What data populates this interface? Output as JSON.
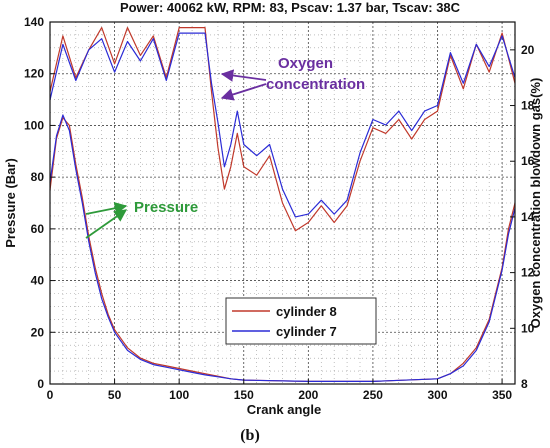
{
  "chart_data": {
    "type": "line",
    "title": "Power: 40062 kW, RPM: 83, Pscav: 1.37 bar, Tscav: 38C",
    "xlabel": "Crank angle",
    "ylabel_left": "Pressure (Bar)",
    "ylabel_right": "Oxygen concentration blowdown gas(%)",
    "xlim": [
      0,
      360
    ],
    "ylim_left": [
      0,
      140
    ],
    "ylim_right": [
      8,
      21
    ],
    "xticks": [
      "0",
      "50",
      "100",
      "150",
      "200",
      "250",
      "300",
      "350"
    ],
    "yticks_left": [
      "0",
      "20",
      "40",
      "60",
      "80",
      "100",
      "120",
      "140"
    ],
    "yticks_right": [
      "8",
      "10",
      "12",
      "14",
      "16",
      "18",
      "20"
    ],
    "grid": true,
    "legend_position": "bottom-center",
    "caption": "(b)",
    "annotations": {
      "oxygen_line1": "Oxygen",
      "oxygen_line2": "concentration",
      "pressure": "Pressure"
    },
    "colors": {
      "cylinder_8": "#c0392b",
      "cylinder_7": "#2b2bd6",
      "oxygen_arrow": "#6a2fa0",
      "pressure_arrow": "#2e9a3a"
    },
    "series": [
      {
        "name": "cylinder 8",
        "axis": "left",
        "quantity": "Pressure",
        "x": [
          0,
          5,
          10,
          15,
          20,
          25,
          30,
          35,
          40,
          45,
          50,
          60,
          70,
          80,
          90,
          100,
          110,
          120,
          130,
          140,
          150,
          200,
          250,
          300,
          310,
          320,
          330,
          340,
          345,
          350,
          355,
          360
        ],
        "y": [
          75,
          95,
          103,
          100,
          85,
          72,
          57,
          45,
          35,
          27,
          21,
          14,
          10,
          8,
          7,
          6,
          5,
          4,
          3,
          2,
          1.5,
          1,
          1,
          2,
          4,
          8,
          14,
          25,
          35,
          45,
          60,
          70
        ]
      },
      {
        "name": "cylinder 7",
        "axis": "left",
        "quantity": "Pressure",
        "x": [
          0,
          5,
          10,
          15,
          20,
          25,
          30,
          35,
          40,
          45,
          50,
          60,
          70,
          80,
          90,
          100,
          110,
          120,
          130,
          140,
          150,
          200,
          250,
          300,
          310,
          320,
          330,
          340,
          345,
          350,
          355,
          360
        ],
        "y": [
          78,
          96,
          104,
          98,
          83,
          70,
          55,
          43,
          33,
          26,
          20,
          13,
          9.5,
          7.5,
          6.5,
          5.5,
          4.5,
          3.5,
          2.8,
          2,
          1.5,
          1,
          1,
          2,
          4,
          7,
          13,
          24,
          34,
          44,
          58,
          68
        ]
      },
      {
        "name": "cylinder 8",
        "axis": "right",
        "quantity": "Oxygen concentration",
        "x": [
          0,
          10,
          20,
          30,
          40,
          50,
          60,
          70,
          80,
          90,
          100,
          110,
          120,
          125,
          130,
          135,
          140,
          145,
          150,
          160,
          170,
          180,
          190,
          200,
          210,
          220,
          230,
          240,
          250,
          260,
          270,
          280,
          290,
          300,
          310,
          320,
          330,
          340,
          350,
          360
        ],
        "y": [
          18.5,
          20.5,
          19,
          20,
          20.8,
          19.5,
          20.8,
          19.8,
          20.5,
          19,
          20.8,
          20.8,
          20.8,
          18.5,
          16.5,
          15,
          15.8,
          17,
          15.8,
          15.5,
          16.2,
          14.5,
          13.5,
          13.8,
          14.4,
          13.8,
          14.4,
          16,
          17.2,
          17,
          17.5,
          16.8,
          17.5,
          17.8,
          19.8,
          18.6,
          20.2,
          19.2,
          20.6,
          18.8
        ]
      },
      {
        "name": "cylinder 7",
        "axis": "right",
        "quantity": "Oxygen concentration",
        "x": [
          0,
          10,
          20,
          30,
          40,
          50,
          60,
          70,
          80,
          90,
          100,
          110,
          120,
          125,
          130,
          135,
          140,
          145,
          150,
          160,
          170,
          180,
          190,
          200,
          210,
          220,
          230,
          240,
          250,
          260,
          270,
          280,
          290,
          300,
          310,
          320,
          330,
          340,
          350,
          360
        ],
        "y": [
          18.2,
          20.2,
          18.9,
          20,
          20.4,
          19.2,
          20.3,
          19.6,
          20.4,
          18.9,
          20.6,
          20.6,
          20.6,
          18.8,
          17.4,
          15.8,
          16.6,
          17.8,
          16.6,
          16.2,
          16.6,
          15,
          14,
          14.1,
          14.6,
          14.1,
          14.6,
          16.3,
          17.5,
          17.3,
          17.8,
          17.1,
          17.8,
          18,
          19.9,
          18.8,
          20.2,
          19.4,
          20.5,
          19
        ]
      }
    ]
  }
}
